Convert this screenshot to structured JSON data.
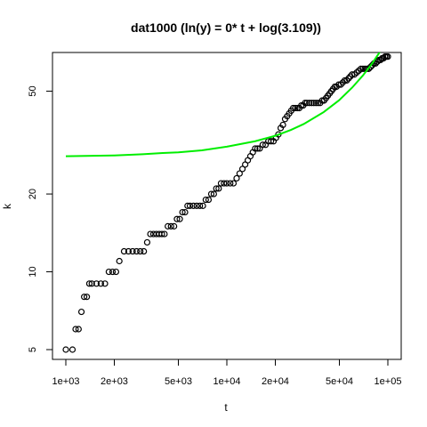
{
  "chart_data": {
    "type": "scatter",
    "title": "dat1000 (ln(y) = 0* t + log(3.109))",
    "xlabel": "t",
    "ylabel": "k",
    "x_scale": "log",
    "y_scale": "log",
    "xlim": [
      1000,
      100000
    ],
    "ylim": [
      5,
      70
    ],
    "x_ticks": [
      {
        "value": 1000,
        "label": "1e+03"
      },
      {
        "value": 2000,
        "label": "2e+03"
      },
      {
        "value": 5000,
        "label": "5e+03"
      },
      {
        "value": 10000,
        "label": "1e+04"
      },
      {
        "value": 20000,
        "label": "2e+04"
      },
      {
        "value": 50000,
        "label": "5e+04"
      },
      {
        "value": 100000,
        "label": "1e+05"
      }
    ],
    "y_ticks": [
      {
        "value": 5,
        "label": "5"
      },
      {
        "value": 10,
        "label": "10"
      },
      {
        "value": 20,
        "label": "20"
      },
      {
        "value": 50,
        "label": "50"
      }
    ],
    "grid": false,
    "series": [
      {
        "marker": "open-circle",
        "color": "#000000",
        "points": [
          [
            1000,
            5
          ],
          [
            1100,
            5
          ],
          [
            1150,
            6
          ],
          [
            1200,
            6
          ],
          [
            1250,
            7
          ],
          [
            1300,
            8
          ],
          [
            1350,
            8
          ],
          [
            1400,
            9
          ],
          [
            1450,
            9
          ],
          [
            1550,
            9
          ],
          [
            1650,
            9
          ],
          [
            1750,
            9
          ],
          [
            1850,
            10
          ],
          [
            1950,
            10
          ],
          [
            2050,
            10
          ],
          [
            2150,
            11
          ],
          [
            2300,
            12
          ],
          [
            2450,
            12
          ],
          [
            2600,
            12
          ],
          [
            2750,
            12
          ],
          [
            2900,
            12
          ],
          [
            3050,
            12
          ],
          [
            3200,
            13
          ],
          [
            3350,
            14
          ],
          [
            3500,
            14
          ],
          [
            3650,
            14
          ],
          [
            3800,
            14
          ],
          [
            3950,
            14
          ],
          [
            4100,
            14
          ],
          [
            4300,
            15
          ],
          [
            4500,
            15
          ],
          [
            4700,
            15
          ],
          [
            4900,
            16
          ],
          [
            5100,
            16
          ],
          [
            5300,
            17
          ],
          [
            5500,
            17
          ],
          [
            5700,
            18
          ],
          [
            5900,
            18
          ],
          [
            6200,
            18
          ],
          [
            6500,
            18
          ],
          [
            6800,
            18
          ],
          [
            7100,
            18
          ],
          [
            7400,
            19
          ],
          [
            7700,
            19
          ],
          [
            8000,
            20
          ],
          [
            8300,
            20
          ],
          [
            8600,
            21
          ],
          [
            8900,
            21
          ],
          [
            9200,
            22
          ],
          [
            9600,
            22
          ],
          [
            10000,
            22
          ],
          [
            10500,
            22
          ],
          [
            11000,
            22
          ],
          [
            11500,
            23
          ],
          [
            12000,
            24
          ],
          [
            12500,
            25
          ],
          [
            13000,
            26
          ],
          [
            13500,
            27
          ],
          [
            14000,
            28
          ],
          [
            14500,
            29
          ],
          [
            15000,
            30
          ],
          [
            15500,
            30
          ],
          [
            16000,
            30
          ],
          [
            16700,
            31
          ],
          [
            17400,
            31
          ],
          [
            18100,
            32
          ],
          [
            18800,
            32
          ],
          [
            19500,
            32
          ],
          [
            20200,
            33
          ],
          [
            20900,
            34
          ],
          [
            21600,
            36
          ],
          [
            22300,
            37
          ],
          [
            23000,
            39
          ],
          [
            23700,
            40
          ],
          [
            24400,
            41
          ],
          [
            25100,
            42
          ],
          [
            25800,
            43
          ],
          [
            26600,
            43
          ],
          [
            27400,
            43
          ],
          [
            28200,
            43
          ],
          [
            29000,
            44
          ],
          [
            29800,
            44
          ],
          [
            30600,
            45
          ],
          [
            31400,
            45
          ],
          [
            32500,
            45
          ],
          [
            33600,
            45
          ],
          [
            34700,
            45
          ],
          [
            35800,
            45
          ],
          [
            36900,
            45
          ],
          [
            38000,
            45
          ],
          [
            39100,
            46
          ],
          [
            40200,
            46
          ],
          [
            41300,
            47
          ],
          [
            42400,
            48
          ],
          [
            43500,
            49
          ],
          [
            44600,
            50
          ],
          [
            45700,
            51
          ],
          [
            46800,
            52
          ],
          [
            48000,
            52
          ],
          [
            49500,
            53
          ],
          [
            51000,
            53
          ],
          [
            52500,
            54
          ],
          [
            54000,
            55
          ],
          [
            55500,
            55
          ],
          [
            57000,
            56
          ],
          [
            58500,
            57
          ],
          [
            60000,
            58
          ],
          [
            62000,
            58
          ],
          [
            64000,
            59
          ],
          [
            66000,
            60
          ],
          [
            68000,
            61
          ],
          [
            70000,
            61
          ],
          [
            72000,
            61
          ],
          [
            74000,
            61
          ],
          [
            76000,
            61
          ],
          [
            78000,
            62
          ],
          [
            80000,
            63
          ],
          [
            82000,
            64
          ],
          [
            84000,
            64
          ],
          [
            86000,
            65
          ],
          [
            88000,
            66
          ],
          [
            90000,
            66
          ],
          [
            92000,
            67
          ],
          [
            94000,
            67
          ],
          [
            96000,
            68
          ],
          [
            98000,
            68
          ],
          [
            100000,
            68
          ]
        ]
      },
      {
        "type": "line",
        "color": "#00ee00",
        "points": [
          [
            1000,
            28.0
          ],
          [
            2000,
            28.2
          ],
          [
            3000,
            28.5
          ],
          [
            4000,
            28.8
          ],
          [
            5000,
            29.0
          ],
          [
            7000,
            29.5
          ],
          [
            10000,
            30.5
          ],
          [
            15000,
            32.0
          ],
          [
            20000,
            33.6
          ],
          [
            25000,
            35.4
          ],
          [
            30000,
            37.3
          ],
          [
            40000,
            41.5
          ],
          [
            50000,
            46.2
          ],
          [
            60000,
            51.6
          ],
          [
            70000,
            57.5
          ],
          [
            80000,
            64.1
          ],
          [
            90000,
            71.5
          ],
          [
            100000,
            79.5
          ]
        ]
      }
    ]
  }
}
